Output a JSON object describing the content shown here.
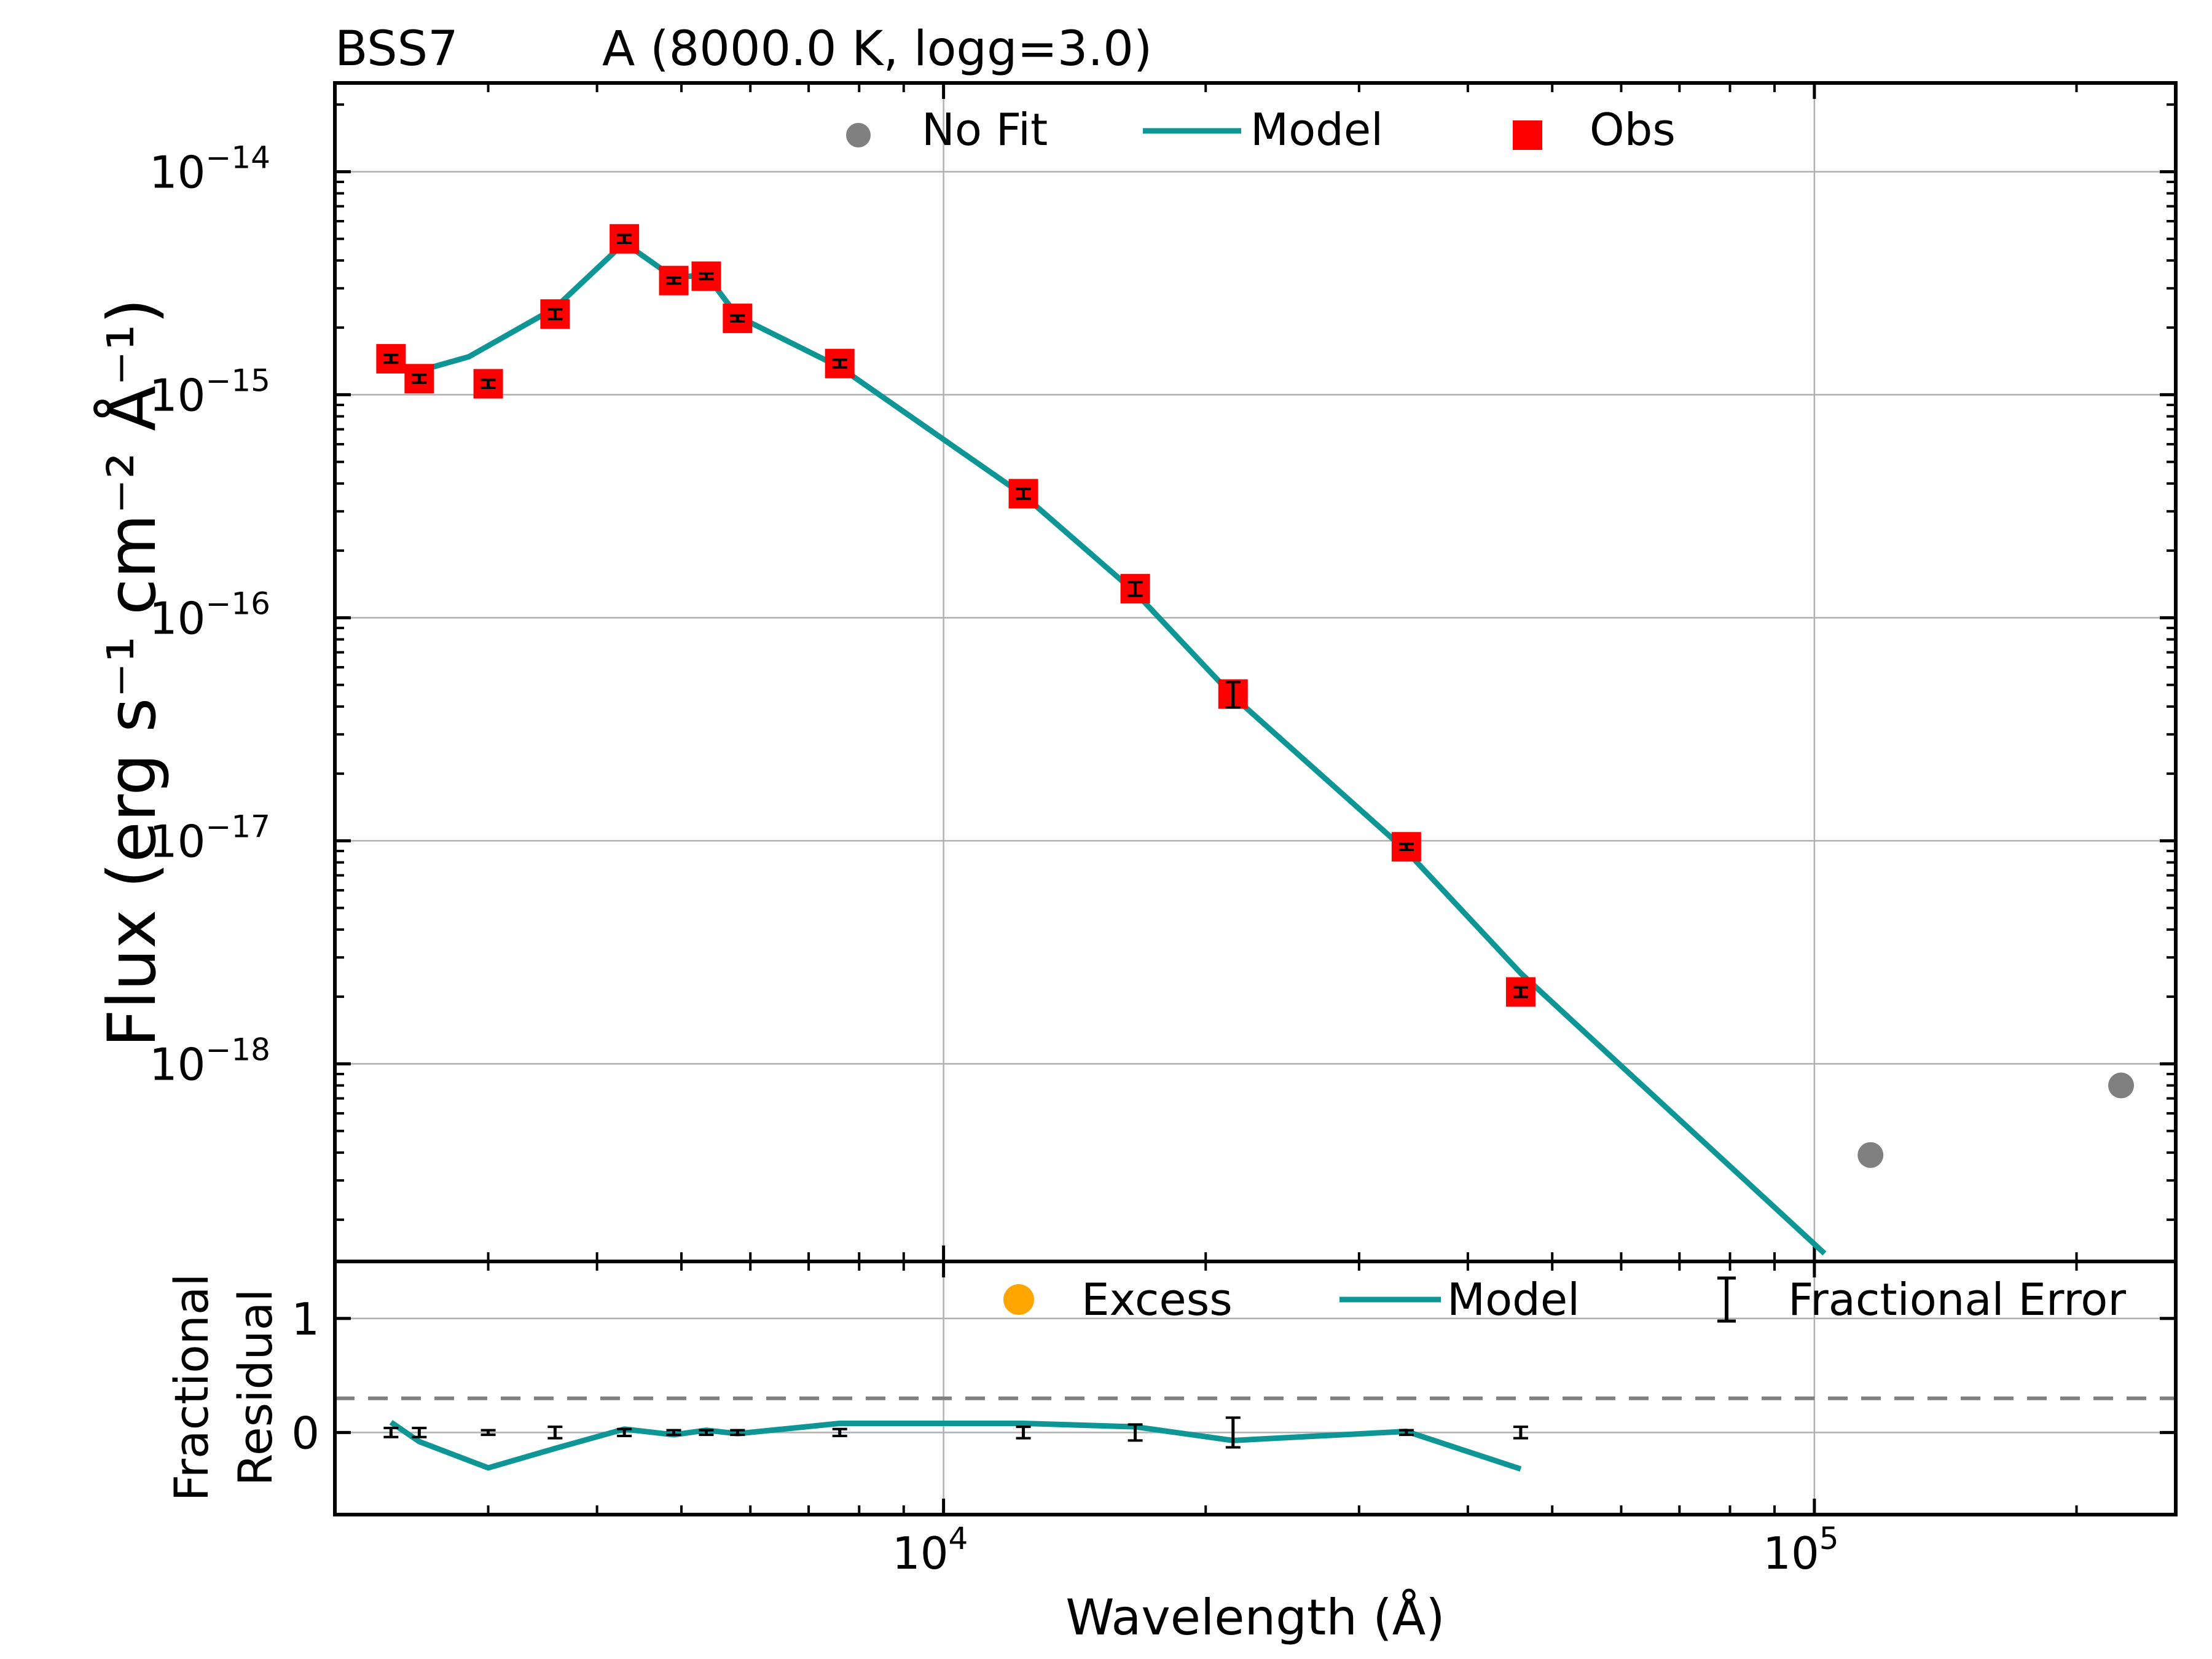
{
  "title": {
    "object": "BSS7",
    "model": "A (8000.0 K, logg=3.0)"
  },
  "colors": {
    "model": "#0e9696",
    "obs": "#ff0000",
    "nofit": "#808080",
    "excess": "#ffa500",
    "errorbar": "#000000",
    "grid": "#b0b0b0",
    "dashed": "#808080"
  },
  "chart_data": [
    {
      "panel": "sed",
      "type": "scatter",
      "xscale": "log",
      "yscale": "log",
      "xlim": [
        2000,
        260000
      ],
      "ylim": [
        1.3e-19,
        2.5e-14
      ],
      "grid": true,
      "xlabel": "Wavelength (Å)",
      "ylabel": "Flux (erg s⁻¹ cm⁻² Å⁻¹)",
      "ytick_labels": [
        {
          "value": 1e-14,
          "base": "10",
          "exp": "−14"
        },
        {
          "value": 1e-15,
          "base": "10",
          "exp": "−15"
        },
        {
          "value": 1e-16,
          "base": "10",
          "exp": "−16"
        },
        {
          "value": 1e-17,
          "base": "10",
          "exp": "−17"
        },
        {
          "value": 1e-18,
          "base": "10",
          "exp": "−18"
        }
      ],
      "legend": {
        "placement": "upper-center",
        "entries": [
          {
            "label": "No Fit",
            "marker": "circle",
            "color": "#808080"
          },
          {
            "label": "Model",
            "marker": "line",
            "color": "#0e9696"
          },
          {
            "label": "Obs",
            "marker": "square",
            "color": "#ff0000"
          }
        ]
      },
      "series": [
        {
          "name": "Model",
          "kind": "line",
          "x": [
            2320,
            2500,
            2850,
            3580,
            4300,
            4900,
            5340,
            5800,
            7600,
            12350,
            16600,
            21500,
            34000,
            46000,
            104000
          ],
          "y": [
            1.32e-15,
            1.28e-15,
            1.48e-15,
            2.45e-15,
            4.8e-15,
            3.35e-15,
            3.45e-15,
            2.25e-15,
            1.33e-15,
            3.55e-16,
            1.3e-16,
            4.45e-17,
            9e-18,
            2.55e-18,
            1.35e-19
          ]
        },
        {
          "name": "Obs",
          "kind": "scatter",
          "marker": "square",
          "x": [
            2320,
            2500,
            3000,
            3580,
            4300,
            4900,
            5340,
            5800,
            7600,
            12350,
            16600,
            21500,
            34000,
            46000
          ],
          "y": [
            1.45e-15,
            1.18e-15,
            1.12e-15,
            2.3e-15,
            5e-15,
            3.25e-15,
            3.4e-15,
            2.2e-15,
            1.38e-15,
            3.6e-16,
            1.35e-16,
            4.55e-17,
            9.4e-18,
            2.1e-18
          ],
          "yerr_frac": [
            0.04,
            0.04,
            0.04,
            0.05,
            0.04,
            0.03,
            0.03,
            0.03,
            0.04,
            0.05,
            0.07,
            0.13,
            0.03,
            0.05
          ]
        },
        {
          "name": "No Fit",
          "kind": "scatter",
          "marker": "circle",
          "x": [
            116000,
            225000
          ],
          "y": [
            3.9e-19,
            8e-19
          ]
        }
      ]
    },
    {
      "panel": "residual",
      "type": "line",
      "xscale": "log",
      "xlim": [
        2000,
        260000
      ],
      "ylim": [
        -0.72,
        1.5
      ],
      "grid": true,
      "xlabel": "Wavelength (Å)",
      "ylabel_line1": "Fractional",
      "ylabel_line2": "Residual",
      "ytick_labels": [
        "1",
        "0"
      ],
      "xtick_labels": [
        {
          "value": 10000,
          "base": "10",
          "exp": "4"
        },
        {
          "value": 100000,
          "base": "10",
          "exp": "5"
        }
      ],
      "threshold": 0.3,
      "legend": {
        "placement": "upper-right",
        "entries": [
          {
            "label": "Excess",
            "marker": "circle",
            "color": "#ffa500"
          },
          {
            "label": "Model",
            "marker": "line",
            "color": "#0e9696"
          },
          {
            "label": "Fractional Error",
            "marker": "errorbar",
            "color": "#000000"
          }
        ]
      },
      "series": [
        {
          "name": "Model",
          "kind": "line",
          "x": [
            2320,
            2500,
            3000,
            3580,
            4300,
            4900,
            5340,
            5800,
            7600,
            12350,
            16600,
            21500,
            34000,
            46000
          ],
          "y": [
            0.09,
            -0.08,
            -0.31,
            -0.14,
            0.03,
            -0.02,
            0.02,
            -0.01,
            0.08,
            0.08,
            0.05,
            -0.07,
            0.01,
            -0.32
          ]
        },
        {
          "name": "Fractional Error",
          "kind": "errorbar",
          "x": [
            2320,
            2500,
            3000,
            3580,
            4300,
            4900,
            5340,
            5800,
            7600,
            12350,
            16600,
            21500,
            34000,
            46000
          ],
          "y": [
            0,
            0,
            0,
            0,
            0,
            0,
            0,
            0,
            0,
            0,
            0,
            0,
            0,
            0
          ],
          "yerr": [
            0.04,
            0.04,
            0.02,
            0.05,
            0.03,
            0.02,
            0.02,
            0.02,
            0.03,
            0.05,
            0.07,
            0.13,
            0.02,
            0.05
          ]
        }
      ]
    }
  ]
}
